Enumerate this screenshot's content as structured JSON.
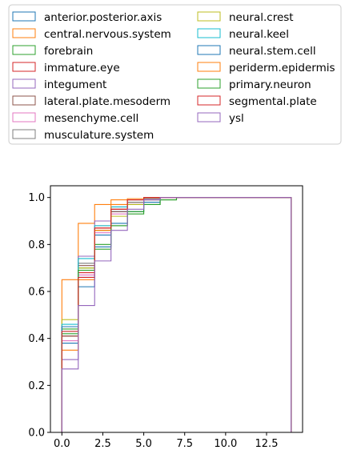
{
  "chart_data": {
    "type": "step-cdf",
    "title": "",
    "xlabel": "",
    "ylabel": "",
    "xlim": [
      -0.7,
      14.7
    ],
    "ylim": [
      0,
      1.05
    ],
    "x_ticks": [
      0.0,
      2.5,
      5.0,
      7.5,
      10.0,
      12.5
    ],
    "x_tick_labels": [
      "0.0",
      "2.5",
      "5.0",
      "7.5",
      "10.0",
      "12.5"
    ],
    "y_ticks": [
      0.0,
      0.2,
      0.4,
      0.6,
      0.8,
      1.0
    ],
    "y_tick_labels": [
      "0.0",
      "0.2",
      "0.4",
      "0.6",
      "0.8",
      "1.0"
    ],
    "x_max": 14,
    "legend": {
      "placement": "above-plot",
      "columns": 2
    },
    "series": [
      {
        "name": "anterior.posterior.axis",
        "color": "#1f77b4",
        "values": [
          0.38,
          0.66,
          0.84,
          0.94,
          0.97,
          0.99,
          1.0
        ]
      },
      {
        "name": "central.nervous.system",
        "color": "#ff7f0e",
        "values": [
          0.65,
          0.89,
          0.97,
          0.99,
          0.995,
          1.0,
          1.0
        ]
      },
      {
        "name": "forebrain",
        "color": "#2ca02c",
        "values": [
          0.44,
          0.7,
          0.8,
          0.88,
          0.93,
          0.97,
          0.99,
          1.0
        ]
      },
      {
        "name": "immature.eye",
        "color": "#d62728",
        "values": [
          0.41,
          0.68,
          0.87,
          0.95,
          0.98,
          0.995,
          1.0
        ]
      },
      {
        "name": "integument",
        "color": "#9467bd",
        "values": [
          0.31,
          0.75,
          0.9,
          0.96,
          0.99,
          1.0
        ]
      },
      {
        "name": "lateral.plate.mesoderm",
        "color": "#8c564b",
        "values": [
          0.41,
          0.71,
          0.86,
          0.94,
          0.98,
          0.99,
          1.0
        ]
      },
      {
        "name": "mesenchyme.cell",
        "color": "#e377c2",
        "values": [
          0.39,
          0.67,
          0.85,
          0.93,
          0.97,
          0.99,
          1.0
        ]
      },
      {
        "name": "musculature.system",
        "color": "#7f7f7f",
        "values": [
          0.43,
          0.72,
          0.88,
          0.95,
          0.98,
          0.995,
          1.0
        ]
      },
      {
        "name": "neural.crest",
        "color": "#bcbd22",
        "values": [
          0.48,
          0.7,
          0.86,
          0.92,
          0.97,
          0.99,
          1.0
        ]
      },
      {
        "name": "neural.keel",
        "color": "#17becf",
        "values": [
          0.46,
          0.74,
          0.88,
          0.96,
          0.99,
          1.0
        ]
      },
      {
        "name": "neural.stem.cell",
        "color": "#1f77b4",
        "values": [
          0.45,
          0.62,
          0.79,
          0.89,
          0.94,
          0.98,
          1.0
        ]
      },
      {
        "name": "periderm.epidermis",
        "color": "#ff7f0e",
        "values": [
          0.35,
          0.65,
          0.86,
          0.97,
          0.99,
          1.0
        ]
      },
      {
        "name": "primary.neuron",
        "color": "#2ca02c",
        "values": [
          0.42,
          0.69,
          0.78,
          0.88,
          0.94,
          0.97,
          0.99,
          1.0
        ]
      },
      {
        "name": "segmental.plate",
        "color": "#d62728",
        "values": [
          0.43,
          0.66,
          0.87,
          0.95,
          0.99,
          1.0
        ]
      },
      {
        "name": "ysl",
        "color": "#9467bd",
        "values": [
          0.27,
          0.54,
          0.73,
          0.86,
          0.95,
          0.99,
          1.0
        ]
      }
    ]
  }
}
